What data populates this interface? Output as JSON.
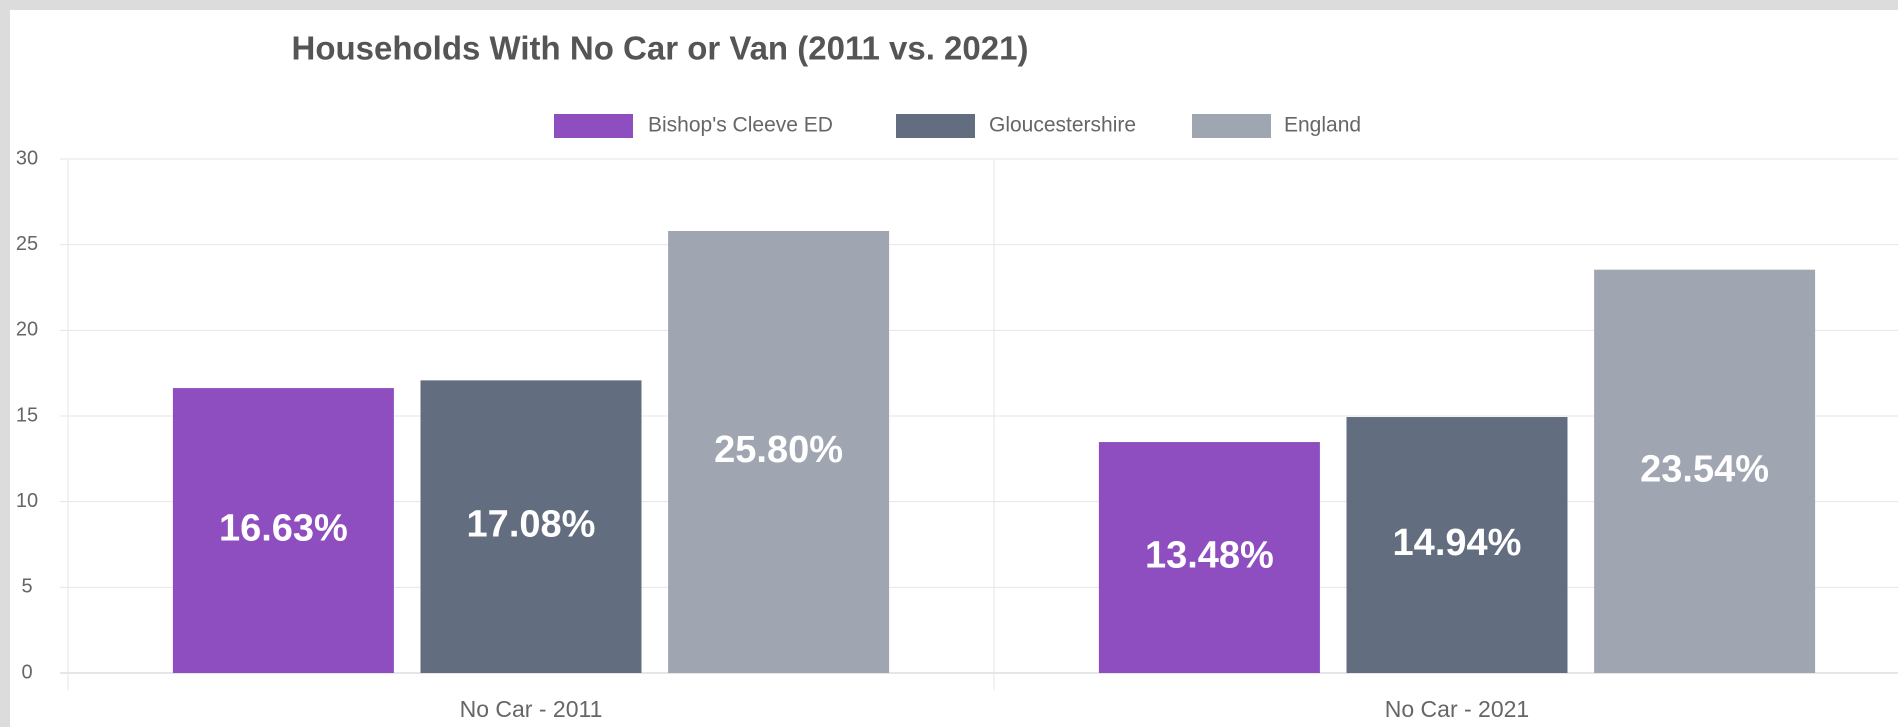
{
  "chart_data": {
    "type": "bar",
    "title": "Households With No Car or Van (2011 vs. 2021)",
    "categories": [
      "No Car - 2011",
      "No Car - 2021"
    ],
    "series": [
      {
        "name": "Bishop's Cleeve ED",
        "color": "#8e4ec0",
        "values": [
          16.63,
          13.48
        ],
        "value_labels": [
          "16.63%",
          "13.48%"
        ]
      },
      {
        "name": "Gloucestershire",
        "color": "#626d80",
        "values": [
          17.08,
          14.94
        ],
        "value_labels": [
          "17.08%",
          "14.94%"
        ]
      },
      {
        "name": "England",
        "color": "#a0a5b2",
        "values": [
          25.8,
          23.54
        ],
        "value_labels": [
          "25.80%",
          "23.54%"
        ]
      }
    ],
    "ylim": [
      0,
      30
    ],
    "yticks": [
      0,
      5,
      10,
      15,
      20,
      25,
      30
    ],
    "grid": true,
    "legend": "top"
  }
}
